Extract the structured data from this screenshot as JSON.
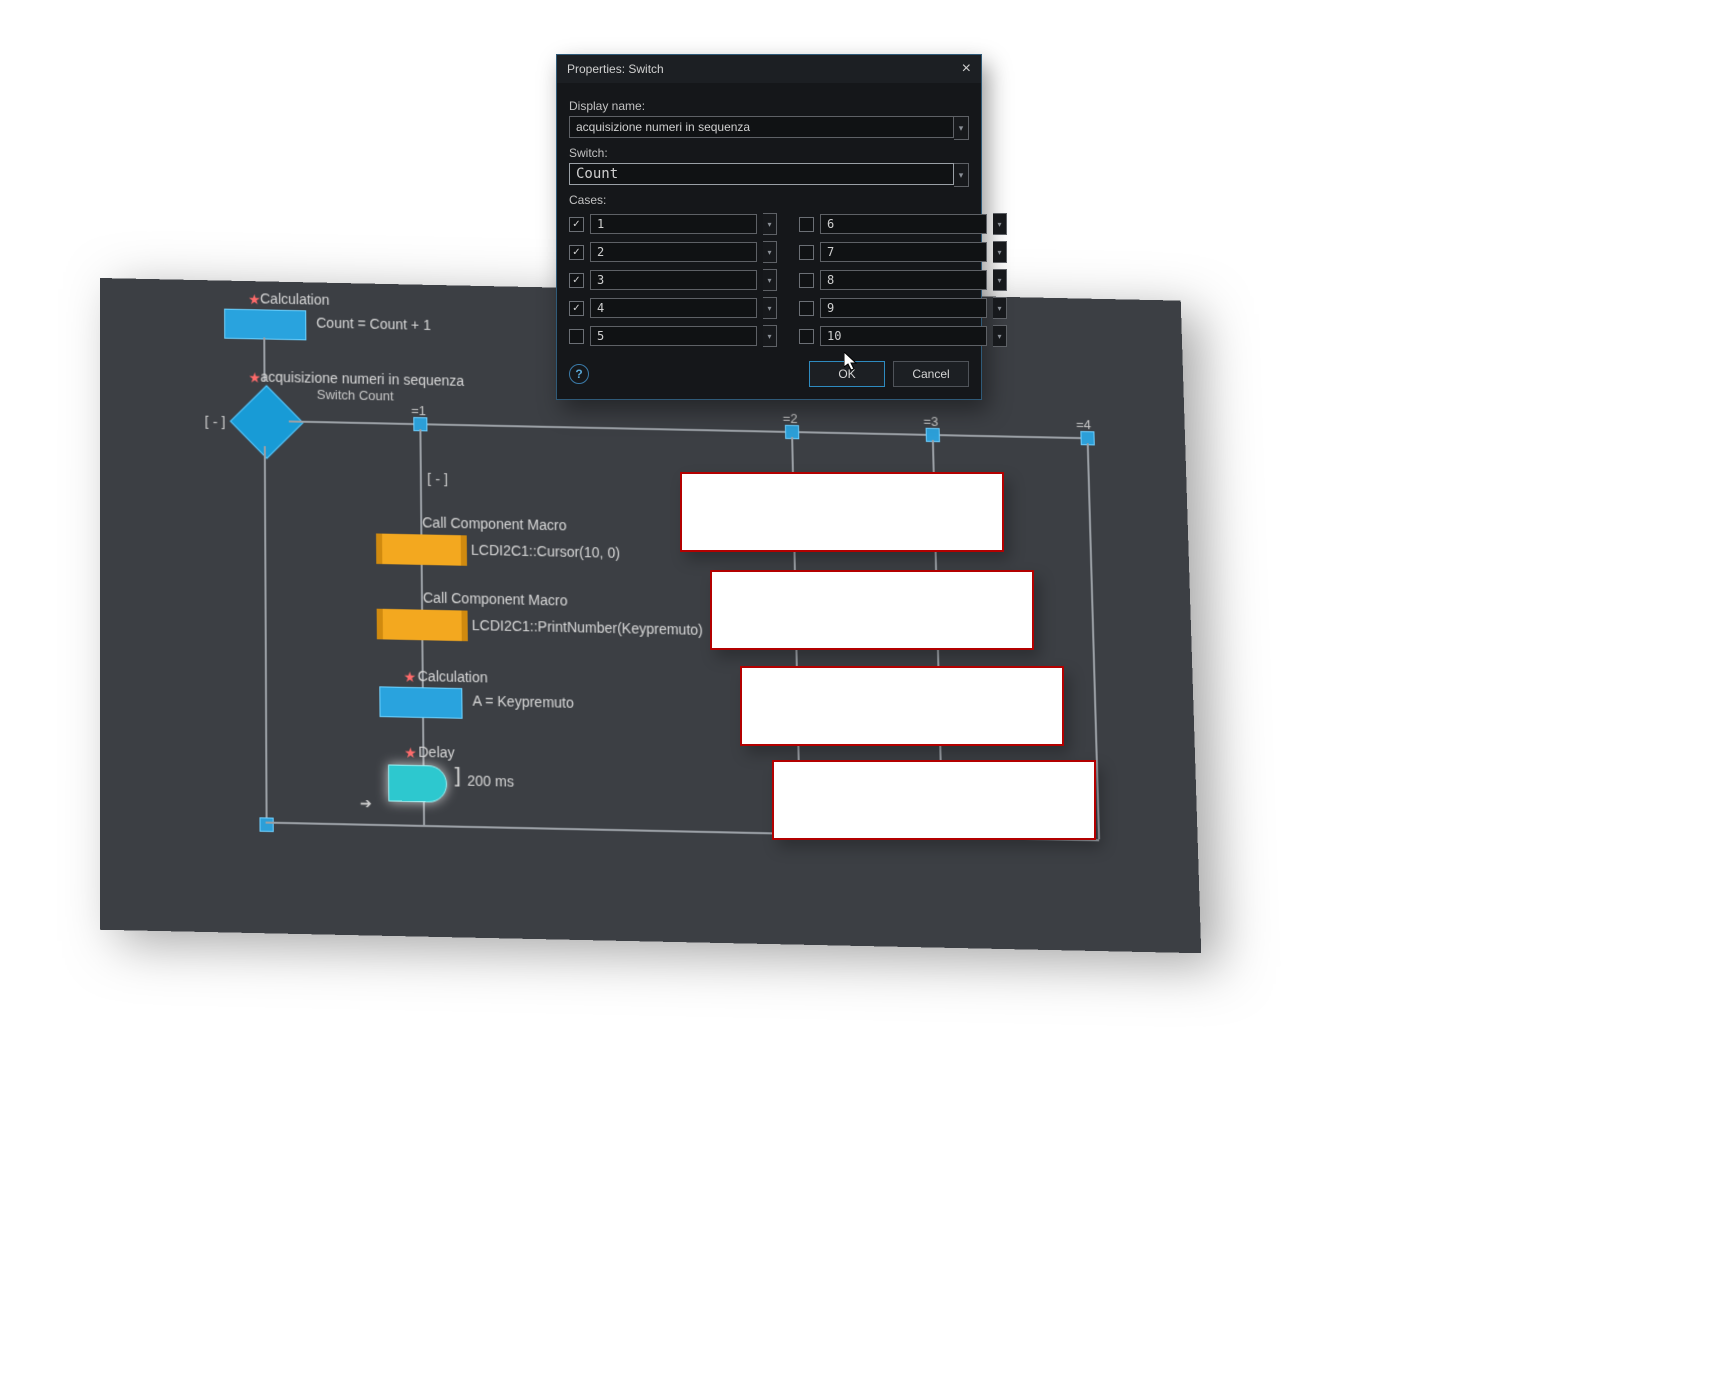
{
  "dialog": {
    "title": "Properties: Switch",
    "display_name_label": "Display name:",
    "display_name_value": "acquisizione numeri in sequenza",
    "switch_label": "Switch:",
    "switch_value": "Count",
    "cases_label": "Cases:",
    "cases_left": [
      {
        "v": "1",
        "c": true
      },
      {
        "v": "2",
        "c": true
      },
      {
        "v": "3",
        "c": true
      },
      {
        "v": "4",
        "c": true
      },
      {
        "v": "5",
        "c": false
      }
    ],
    "cases_right": [
      {
        "v": "6",
        "c": false
      },
      {
        "v": "7",
        "c": false
      },
      {
        "v": "8",
        "c": false
      },
      {
        "v": "9",
        "c": false
      },
      {
        "v": "10",
        "c": false
      }
    ],
    "ok": "OK",
    "cancel": "Cancel"
  },
  "flow": {
    "calc_title": "Calculation",
    "calc_expr": "Count = Count + 1",
    "switch_title": "acquisizione numeri in sequenza",
    "switch_sub": "Switch Count",
    "default_lbl": "[-]",
    "branch_collapse": "[-]",
    "b1": "=1",
    "b2": "=2",
    "b3": "=3",
    "b4": "=4",
    "macro1_title": "Call Component Macro",
    "macro1_text": "LCDI2C1::Cursor(10, 0)",
    "macro2_title": "Call Component Macro",
    "macro2_text": "LCDI2C1::PrintNumber(Keypremuto)",
    "calc2_title": "Calculation",
    "calc2_expr": "A = Keypremuto",
    "delay_title": "Delay",
    "delay_text": "200 ms",
    "arrow": "➔"
  },
  "colors": {
    "canvas_bg": "#3c3f44",
    "calc": "#29a3de",
    "macro": "#f3a81f",
    "delay": "#2dc8cf",
    "diamond": "#189bd6",
    "redact_border": "#b30000",
    "dlg_bg": "#15171a",
    "dlg_accent": "#2e8bc0"
  }
}
